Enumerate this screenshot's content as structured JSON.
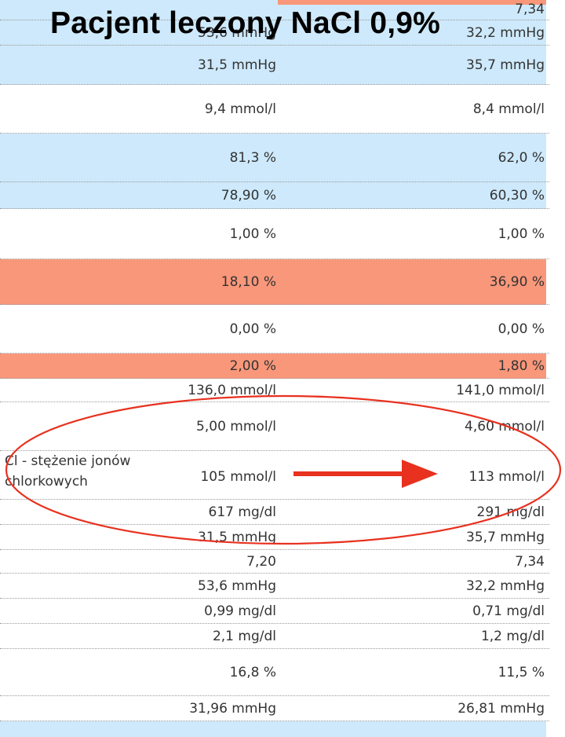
{
  "title": "Pacjent leczony  NaCl 0,9%",
  "row_label": [
    "Cl - stężenie jonów",
    "chlorkowych"
  ],
  "colors": {
    "light_blue": "#cde9fb",
    "salmon": "#f9977a",
    "annotation_red": "#e8311f"
  },
  "rows": [
    {
      "col1": "",
      "col2": "7,34",
      "highlight": "top"
    },
    {
      "col1": "53,6 mmHg",
      "col2": "32,2 mmHg",
      "highlight": "blue"
    },
    {
      "col1": "31,5 mmHg",
      "col2": "35,7 mmHg",
      "highlight": "blue"
    },
    {
      "col1": "9,4 mmol/l",
      "col2": "8,4 mmol/l",
      "highlight": "none"
    },
    {
      "col1": "81,3 %",
      "col2": "62,0 %",
      "highlight": "blue"
    },
    {
      "col1": "78,90 %",
      "col2": "60,30 %",
      "highlight": "blue"
    },
    {
      "col1": "1,00 %",
      "col2": "1,00 %",
      "highlight": "none"
    },
    {
      "col1": "18,10 %",
      "col2": "36,90 %",
      "highlight": "salmon"
    },
    {
      "col1": "0,00 %",
      "col2": "0,00 %",
      "highlight": "none"
    },
    {
      "col1": "2,00 %",
      "col2": "1,80 %",
      "highlight": "salmon"
    },
    {
      "col1": "136,0 mmol/l",
      "col2": "141,0 mmol/l",
      "highlight": "none"
    },
    {
      "col1": "5,00 mmol/l",
      "col2": "4,60 mmol/l",
      "highlight": "none"
    },
    {
      "col1": "105 mmol/l",
      "col2": "113 mmol/l",
      "highlight": "none"
    },
    {
      "col1": "617 mg/dl",
      "col2": "291 mg/dl",
      "highlight": "none"
    },
    {
      "col1": "31,5 mmHg",
      "col2": "35,7 mmHg",
      "highlight": "none"
    },
    {
      "col1": "7,20",
      "col2": "7,34",
      "highlight": "none"
    },
    {
      "col1": "53,6 mmHg",
      "col2": "32,2 mmHg",
      "highlight": "none"
    },
    {
      "col1": "0,99 mg/dl",
      "col2": "0,71 mg/dl",
      "highlight": "none"
    },
    {
      "col1": "2,1 mg/dl",
      "col2": "1,2 mg/dl",
      "highlight": "none"
    },
    {
      "col1": "16,8 %",
      "col2": "11,5 %",
      "highlight": "none"
    },
    {
      "col1": "31,96 mmHg",
      "col2": "26,81 mmHg",
      "highlight": "none"
    },
    {
      "col1": "",
      "col2": "",
      "highlight": "bottom"
    }
  ]
}
